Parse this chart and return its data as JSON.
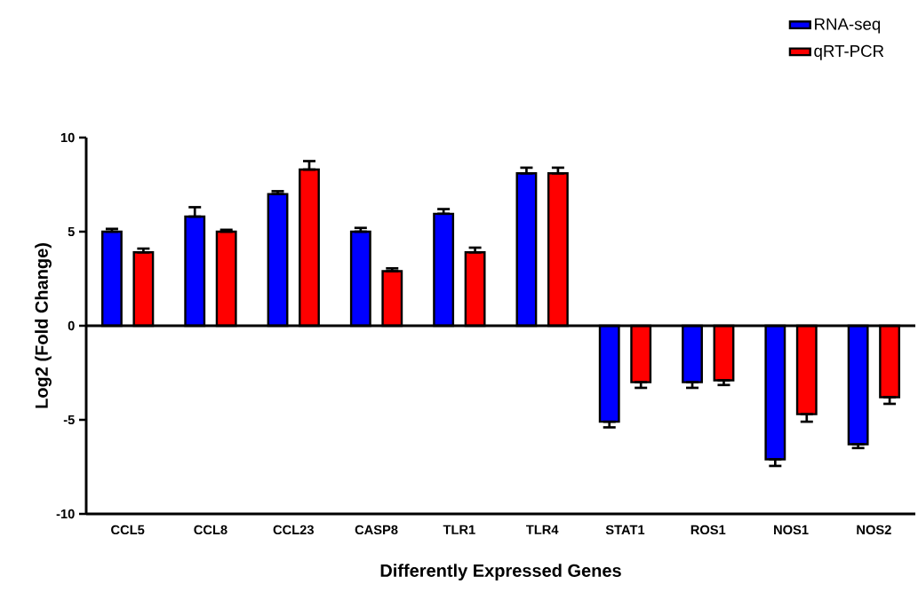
{
  "chart_data": {
    "type": "bar",
    "xlabel": "Differently Expressed Genes",
    "ylabel": "Log2 (Fold Change)",
    "categories": [
      "CCL5",
      "CCL8",
      "CCL23",
      "CASP8",
      "TLR1",
      "TLR4",
      "STAT1",
      "ROS1",
      "NOS1",
      "NOS2"
    ],
    "series": [
      {
        "name": "RNA-seq",
        "color": "#0000ff",
        "values": [
          5.0,
          5.8,
          7.0,
          5.0,
          5.95,
          8.1,
          -5.1,
          -3.0,
          -7.1,
          -6.3
        ],
        "errors": [
          [
            5.0,
            5.15
          ],
          [
            5.8,
            6.3
          ],
          [
            7.0,
            7.15
          ],
          [
            5.0,
            5.2
          ],
          [
            5.95,
            6.2
          ],
          [
            8.1,
            8.4
          ],
          [
            -5.4,
            -5.1
          ],
          [
            -3.3,
            -3.0
          ],
          [
            -7.45,
            -7.1
          ],
          [
            -6.5,
            -6.3
          ]
        ]
      },
      {
        "name": "qRT-PCR",
        "color": "#ff0000",
        "values": [
          3.9,
          5.0,
          8.3,
          2.9,
          3.9,
          8.1,
          -3.0,
          -2.9,
          -4.7,
          -3.8
        ],
        "errors": [
          [
            3.9,
            4.1
          ],
          [
            5.0,
            5.1
          ],
          [
            8.3,
            8.75
          ],
          [
            2.9,
            3.05
          ],
          [
            3.9,
            4.15
          ],
          [
            8.1,
            8.4
          ],
          [
            -3.3,
            -3.0
          ],
          [
            -3.15,
            -2.9
          ],
          [
            -5.1,
            -4.7
          ],
          [
            -4.15,
            -3.8
          ]
        ]
      }
    ],
    "ylim": [
      -10,
      10
    ],
    "yticks": [
      -10,
      -5,
      0,
      5,
      10
    ],
    "ref_lines": [
      {
        "axis": "y",
        "value": 0
      }
    ],
    "legend": "top right"
  }
}
